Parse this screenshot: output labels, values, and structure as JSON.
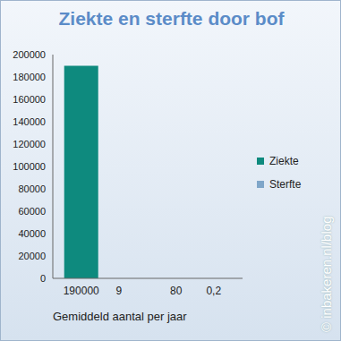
{
  "chart_data": {
    "type": "bar",
    "title": "Ziekte en sterfte door bof",
    "x_label": "Gemiddeld aantal per jaar",
    "categories": [
      null,
      null
    ],
    "series": [
      {
        "name": "Ziekte",
        "color": "#0e8a7e",
        "values": [
          190000,
          80
        ]
      },
      {
        "name": "Sterfte",
        "color": "#7fa6c9",
        "values": [
          9,
          0.2
        ],
        "value_labels": [
          "9",
          "0,2"
        ]
      }
    ],
    "ylim": [
      0,
      200000
    ],
    "yticks": [
      0,
      20000,
      40000,
      60000,
      80000,
      100000,
      120000,
      140000,
      160000,
      180000,
      200000
    ],
    "grid": false,
    "legend": "right",
    "data_labels": true,
    "annotations": [
      "© inbakeren.nl/blog"
    ]
  }
}
